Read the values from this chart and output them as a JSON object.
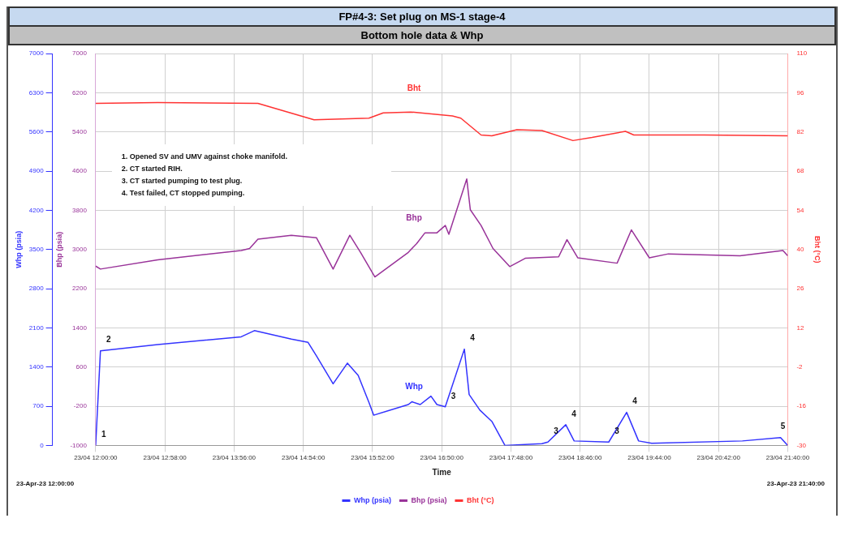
{
  "chart_data": {
    "type": "line",
    "title": "FP#4-3:  Set plug on MS-1 stage-4",
    "subtitle": "Bottom hole data & Whp",
    "xlabel": "Time",
    "ylabel": "Whp (psia)",
    "y2label": "Bht (°C)",
    "y3label": "Bhp (psia)",
    "xlim": [
      "--04-23T12:00",
      "--04-23T21:40"
    ],
    "xticks": [
      {
        "value": "--04-23T12:00",
        "label": "23/04 12:00:00"
      },
      {
        "value": "--04-23T12:58",
        "label": "23/04 12:58:00"
      },
      {
        "value": "--04-23T13:56",
        "label": "23/04 13:56:00"
      },
      {
        "value": "--04-23T14:54",
        "label": "23/04 14:54:00"
      },
      {
        "value": "--04-23T15:52",
        "label": "23/04 15:52:00"
      },
      {
        "value": "--04-23T16:50",
        "label": "23/04 16:50:00"
      },
      {
        "value": "--04-23T17:48",
        "label": "23/04 17:48:00"
      },
      {
        "value": "--04-23T18:46",
        "label": "23/04 18:46:00"
      },
      {
        "value": "--04-23T19:44",
        "label": "23/04 19:44:00"
      },
      {
        "value": "--04-23T20:42",
        "label": "23/04 20:42:00"
      },
      {
        "value": "--04-23T21:40",
        "label": "23/04 21:40:00"
      }
    ],
    "ylim": [
      0,
      7000
    ],
    "yticks": [
      0,
      700,
      1400,
      2100,
      2800,
      3500,
      4200,
      4900,
      5600,
      6300,
      7000
    ],
    "y3lim": [
      -1000,
      7000
    ],
    "y3ticks": [
      -1000,
      -200,
      600,
      1400,
      2200,
      3000,
      3800,
      4600,
      5400,
      6200,
      7000
    ],
    "y2lim": [
      -30,
      110
    ],
    "y2ticks": [
      -30,
      -16,
      -2,
      12,
      26,
      40,
      54,
      68,
      82,
      96,
      110
    ],
    "grid": true,
    "legend": "bottom",
    "marker": "none",
    "line_style": "solid",
    "series": [
      {
        "name": "Whp (psia)",
        "color": "#3333ff",
        "axis": "y",
        "x": [
          "--04-23T12:00",
          "--04-23T12:04",
          "--04-23T12:52",
          "--04-23T14:02",
          "--04-23T14:13",
          "--04-23T14:44",
          "--04-23T14:58",
          "--04-23T15:05",
          "--04-23T15:19",
          "--04-23T15:31",
          "--04-23T15:40",
          "--04-23T15:49",
          "--04-23T15:53",
          "--04-23T16:22",
          "--04-23T16:25",
          "--04-23T16:32",
          "--04-23T16:41",
          "--04-23T16:46",
          "--04-23T16:53",
          "--04-23T17:09",
          "--04-23T17:13",
          "--04-23T17:22",
          "--04-23T17:32",
          "--04-23T17:43",
          "--04-23T18:14",
          "--04-23T18:19",
          "--04-23T18:34",
          "--04-23T18:41",
          "--04-23T19:10",
          "--04-23T19:25",
          "--04-23T19:35",
          "--04-23T19:46",
          "--04-23T21:02",
          "--04-23T21:34",
          "--04-23T21:40"
        ],
        "values": [
          0,
          1690,
          1800,
          1940,
          2050,
          1900,
          1840,
          1600,
          1100,
          1470,
          1250,
          770,
          540,
          730,
          780,
          730,
          880,
          730,
          690,
          1720,
          910,
          630,
          430,
          0,
          30,
          60,
          370,
          80,
          60,
          590,
          80,
          40,
          80,
          140,
          0
        ]
      },
      {
        "name": "Bhp (psia)",
        "color": "#993399",
        "axis": "y3",
        "x": [
          "--04-23T12:00",
          "--04-23T12:04",
          "--04-23T12:52",
          "--04-23T14:02",
          "--04-23T14:09",
          "--04-23T14:16",
          "--04-23T14:44",
          "--04-23T15:05",
          "--04-23T15:19",
          "--04-23T15:33",
          "--04-23T15:42",
          "--04-23T15:54",
          "--04-23T16:22",
          "--04-23T16:29",
          "--04-23T16:36",
          "--04-23T16:46",
          "--04-23T16:53",
          "--04-23T16:56",
          "--04-23T17:11",
          "--04-23T17:14",
          "--04-23T17:23",
          "--04-23T17:33",
          "--04-23T17:47",
          "--04-23T18:00",
          "--04-23T18:28",
          "--04-23T18:35",
          "--04-23T18:44",
          "--04-23T19:17",
          "--04-23T19:29",
          "--04-23T19:44",
          "--04-23T20:00",
          "--04-23T21:00",
          "--04-23T21:36",
          "--04-23T21:40"
        ],
        "values": [
          2660,
          2600,
          2790,
          2980,
          3020,
          3210,
          3290,
          3240,
          2600,
          3290,
          2940,
          2440,
          2940,
          3120,
          3340,
          3340,
          3490,
          3310,
          4440,
          3810,
          3490,
          3020,
          2650,
          2820,
          2850,
          3200,
          2830,
          2720,
          3400,
          2830,
          2910,
          2870,
          2980,
          2870
        ]
      },
      {
        "name": "Bht (°C)",
        "color": "#ff3333",
        "axis": "y2",
        "x": [
          "--04-23T12:00",
          "--04-23T12:52",
          "--04-23T14:16",
          "--04-23T15:03",
          "--04-23T15:49",
          "--04-23T16:01",
          "--04-23T16:24",
          "--04-23T16:59",
          "--04-23T17:06",
          "--04-23T17:23",
          "--04-23T17:32",
          "--04-23T17:53",
          "--04-23T18:14",
          "--04-23T18:40",
          "--04-23T18:56",
          "--04-23T19:24",
          "--04-23T19:31",
          "--04-23T20:30",
          "--04-23T21:40"
        ],
        "values": [
          92.2,
          92.5,
          92.2,
          86.3,
          86.9,
          88.8,
          89.1,
          87.7,
          86.9,
          80.9,
          80.6,
          82.8,
          82.5,
          78.9,
          80.0,
          82.2,
          80.9,
          80.9,
          80.6
        ]
      }
    ],
    "annotations": [
      "1. Opened SV and UMV against choke manifold.\n2. CT started RIH.\n3. CT started pumping to test plug.\n4. Test failed, CT stopped pumping.",
      "23-Apr-23 12:00:00",
      "23-Apr-23 21:40:00",
      "Bht",
      "Bhp",
      "Whp",
      {
        "text": "1",
        "x": "--04-23T12:00",
        "y": 0
      },
      {
        "text": "2",
        "x": "--04-23T12:04",
        "y": 1690
      },
      {
        "text": "3",
        "x": "--04-23T16:53",
        "y": 690
      },
      {
        "text": "4",
        "x": "--04-23T17:09",
        "y": 1720
      },
      {
        "text": "3",
        "x": "--04-23T18:19",
        "y": 60
      },
      {
        "text": "4",
        "x": "--04-23T18:34",
        "y": 370
      },
      {
        "text": "3",
        "x": "--04-23T19:10",
        "y": 60
      },
      {
        "text": "4",
        "x": "--04-23T19:25",
        "y": 590
      },
      {
        "text": "5",
        "x": "--04-23T21:34",
        "y": 140
      }
    ]
  }
}
